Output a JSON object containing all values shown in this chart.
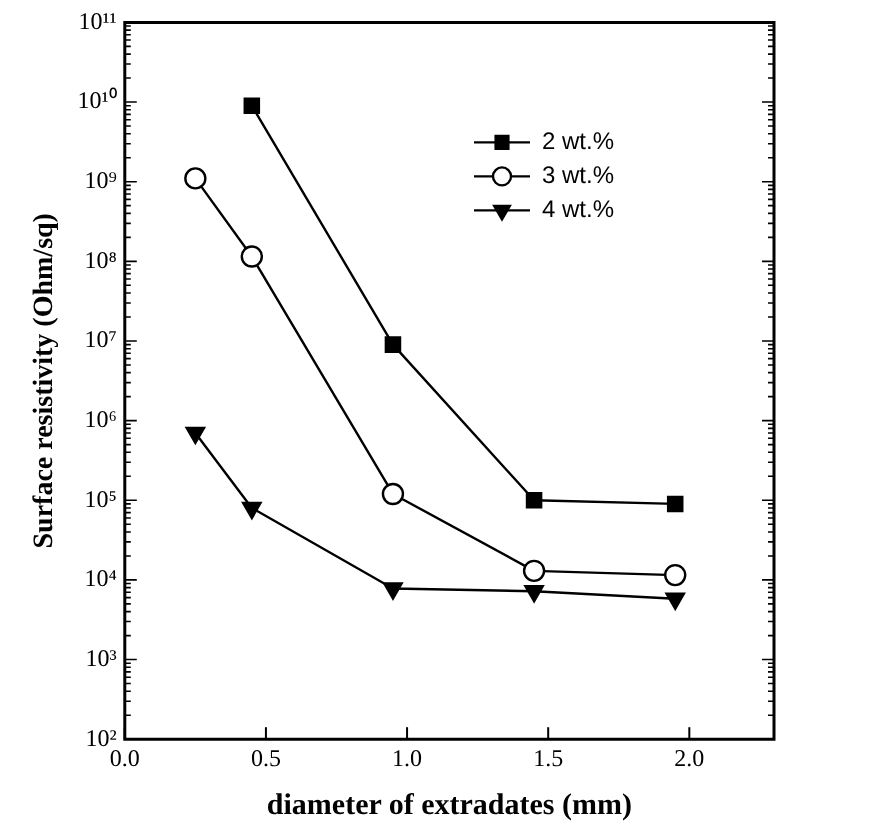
{
  "chart_data": {
    "type": "line",
    "xlabel": "diameter of extradates (mm)",
    "ylabel": "Surface resistivity (Ohm/sq)",
    "series": [
      {
        "name": "2 wt.%",
        "color": "#000000",
        "marker": "square",
        "x": [
          0.45,
          0.95,
          1.45,
          1.95
        ],
        "values": [
          9000000000.0,
          9000000.0,
          100000.0,
          90000.0
        ]
      },
      {
        "name": "3 wt.%",
        "color": "#000000",
        "marker": "circle",
        "x": [
          0.25,
          0.45,
          0.95,
          1.45,
          1.95
        ],
        "values": [
          1100000000.0,
          115000000.0,
          120000.0,
          13000.0,
          11500.0
        ]
      },
      {
        "name": "4 wt.%",
        "color": "#000000",
        "marker": "triangle",
        "x": [
          0.25,
          0.45,
          0.95,
          1.45,
          1.95
        ],
        "values": [
          700000.0,
          80000.0,
          7800.0,
          7200.0,
          5800.0
        ]
      }
    ],
    "log": "y",
    "xlim": [
      0,
      2.3
    ],
    "xticks": [
      {
        "value": 0,
        "label": "0.0"
      },
      {
        "value": 0.5,
        "label": "0.5"
      },
      {
        "value": 1,
        "label": "1.0"
      },
      {
        "value": 1.5,
        "label": "1.5"
      },
      {
        "value": 2,
        "label": "2.0"
      }
    ],
    "ylim": [
      100,
      100000000000.0
    ],
    "yticks": [
      {
        "value": 100,
        "label": "10²"
      },
      {
        "value": 1000,
        "label": "10³"
      },
      {
        "value": 10000,
        "label": "10⁴"
      },
      {
        "value": 100000,
        "label": "10⁵"
      },
      {
        "value": 1000000,
        "label": "10⁶"
      },
      {
        "value": 10000000,
        "label": "10⁷"
      },
      {
        "value": 100000000,
        "label": "10⁸"
      },
      {
        "value": 1000000000,
        "label": "10⁹"
      },
      {
        "value": 10000000000,
        "label": "10¹⁰"
      },
      {
        "value": 100000000000,
        "label": "10¹¹"
      }
    ],
    "grid": false,
    "legend": "top right",
    "line_style": "solid"
  }
}
